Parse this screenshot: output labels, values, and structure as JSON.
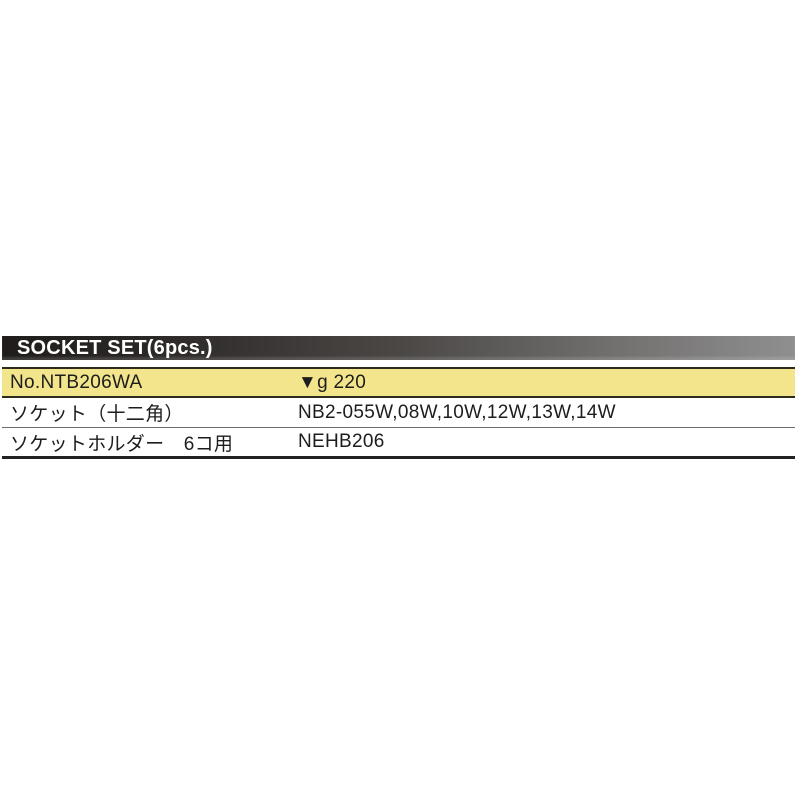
{
  "table": {
    "header": {
      "title": "SOCKET SET(6pcs.)",
      "text_color": "#ffffff",
      "bg_gradient_left": "#201c1c",
      "bg_gradient_mid": "#4a4745",
      "bg_gradient_right": "#8f8f8f"
    },
    "colors": {
      "highlight_row_bg": "#f3e58b",
      "dark_rule": "#2e2a1c",
      "gray_rule": "#6b6b6b",
      "bottom_rule": "#222220",
      "text": "#1d1d1d"
    },
    "rows": [
      {
        "label": "No.NTB206WA",
        "value": "▼g 220",
        "note": "weight-grams-row"
      },
      {
        "label": "ソケット（十二角）",
        "value": "NB2-055W,08W,10W,12W,13W,14W",
        "note": "socket-12pt-row"
      },
      {
        "label": "ソケットホルダー　6コ用",
        "value": "NEHB206",
        "note": "socket-holder-row"
      }
    ]
  }
}
